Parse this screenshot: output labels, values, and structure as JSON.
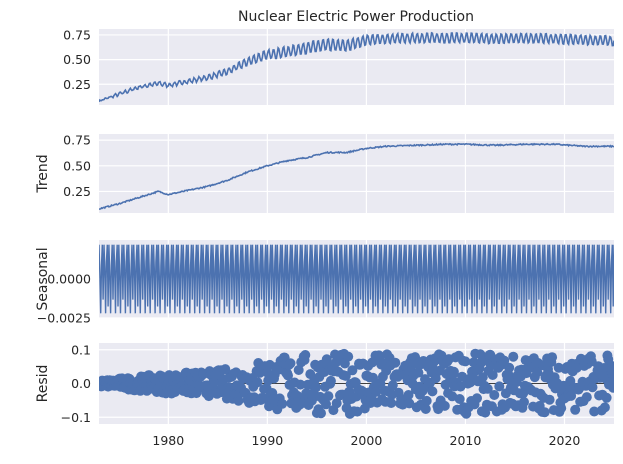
{
  "colors": {
    "line": "#4c72b0",
    "panel_bg": "#eaeaf2",
    "grid": "#ffffff"
  },
  "chart_data": {
    "type": "line",
    "title": "Nuclear Electric Power Production",
    "x_range": [
      1973,
      2025
    ],
    "x_ticks": [
      "1980",
      "1990",
      "2000",
      "2010",
      "2020"
    ],
    "grid": true,
    "panels": [
      {
        "id": "observed",
        "ylabel": "",
        "ylim": [
          0.04,
          0.81
        ],
        "y_ticks": [
          "0.25",
          "0.50",
          "0.75"
        ],
        "style": "line",
        "series": {
          "x": [
            1973,
            1975,
            1977,
            1979,
            1980,
            1982,
            1984,
            1986,
            1988,
            1990,
            1992,
            1994,
            1996,
            1998,
            2000,
            2002,
            2005,
            2008,
            2010,
            2013,
            2016,
            2019,
            2022,
            2025
          ],
          "y": [
            0.08,
            0.15,
            0.22,
            0.26,
            0.24,
            0.28,
            0.32,
            0.38,
            0.48,
            0.55,
            0.58,
            0.62,
            0.65,
            0.64,
            0.7,
            0.71,
            0.72,
            0.72,
            0.72,
            0.71,
            0.72,
            0.71,
            0.7,
            0.69
          ],
          "seasonal_amplitude": [
            0.0,
            0.015,
            0.015,
            0.02,
            0.02,
            0.02,
            0.025,
            0.03,
            0.04,
            0.05,
            0.055,
            0.06,
            0.06,
            0.06,
            0.05,
            0.05,
            0.05,
            0.05,
            0.05,
            0.05,
            0.05,
            0.05,
            0.05,
            0.05
          ]
        }
      },
      {
        "id": "trend",
        "ylabel": "Trend",
        "ylim": [
          0.04,
          0.81
        ],
        "y_ticks": [
          "0.25",
          "0.50",
          "0.75"
        ],
        "style": "line",
        "series": {
          "x": [
            1973,
            1975,
            1977,
            1979,
            1980,
            1982,
            1984,
            1986,
            1988,
            1990,
            1992,
            1994,
            1996,
            1998,
            2000,
            2002,
            2005,
            2008,
            2010,
            2013,
            2016,
            2019,
            2022,
            2025
          ],
          "y": [
            0.08,
            0.13,
            0.19,
            0.25,
            0.22,
            0.26,
            0.3,
            0.36,
            0.44,
            0.5,
            0.55,
            0.58,
            0.63,
            0.63,
            0.67,
            0.69,
            0.7,
            0.71,
            0.71,
            0.7,
            0.71,
            0.71,
            0.69,
            0.69
          ]
        }
      },
      {
        "id": "seasonal",
        "ylabel": "Seasonal",
        "ylim": [
          -0.0025,
          0.0025
        ],
        "y_ticks": [
          "0.0000",
          "−0.0025"
        ],
        "y_tick_values": [
          0,
          -0.0025
        ],
        "style": "seasonal",
        "series": {
          "amplitude": 0.0022,
          "period_years": 1
        }
      },
      {
        "id": "resid",
        "ylabel": "Resid",
        "ylim": [
          -0.12,
          0.12
        ],
        "y_ticks": [
          "0.1",
          "0.0",
          "−0.1"
        ],
        "y_tick_values": [
          0.1,
          0,
          -0.1
        ],
        "style": "scatter",
        "series": {
          "x": [
            1973,
            1980,
            1985,
            1988,
            1990,
            1995,
            2000,
            2005,
            2010,
            2015,
            2020,
            2025
          ],
          "spread": [
            0.01,
            0.03,
            0.04,
            0.06,
            0.08,
            0.09,
            0.09,
            0.09,
            0.09,
            0.085,
            0.085,
            0.085
          ]
        }
      }
    ]
  }
}
